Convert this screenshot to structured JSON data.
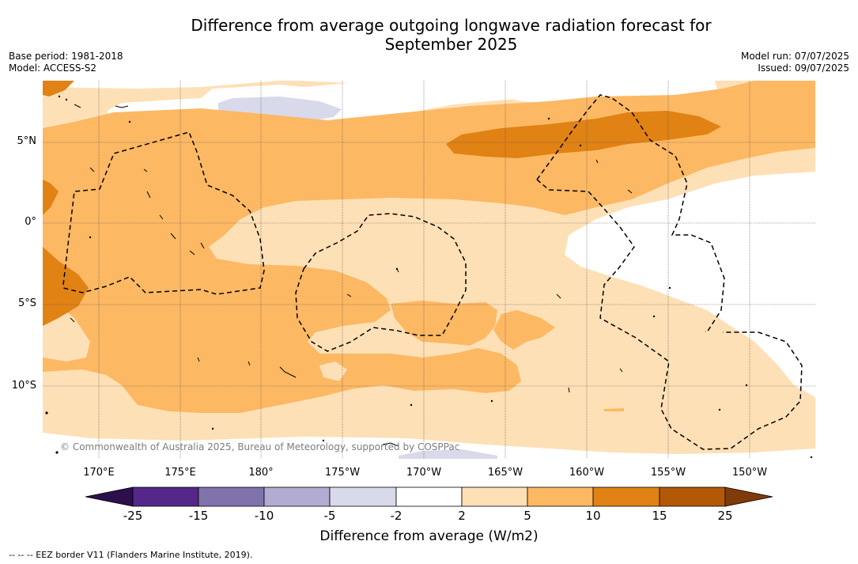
{
  "title": {
    "line1": "Difference from average outgoing longwave radiation forecast for",
    "line2": "September 2025"
  },
  "meta": {
    "base_period": "Base period: 1981-2018",
    "model": "Model: ACCESS-S2",
    "model_run": "Model run: 07/07/2025",
    "issued": "Issued: 09/07/2025"
  },
  "map": {
    "lat_labels": [
      "5°N",
      "0°",
      "5°S",
      "10°S"
    ],
    "lon_labels": [
      "170°E",
      "175°E",
      "180°",
      "175°W",
      "170°W",
      "165°W",
      "160°W",
      "155°W",
      "150°W"
    ],
    "copyright": "© Commonwealth of Australia 2025, Bureau of Meteorology, supported by COSPPac"
  },
  "colorbar": {
    "label": "Difference from average (W/m2)",
    "ticks": [
      "-25",
      "-15",
      "-10",
      "-5",
      "-2",
      "2",
      "5",
      "10",
      "15",
      "25"
    ],
    "colors": {
      "below_-25": "#2d0f4e",
      "-25_-15": "#542788",
      "-15_-10": "#8073ac",
      "-10_-5": "#b2abd2",
      "-5_-2": "#d8daeb",
      "-2_2": "#ffffff",
      "2_5": "#fee0b6",
      "5_10": "#fdb863",
      "10_15": "#e08214",
      "15_25": "#b35806",
      "above_25": "#7f3b08"
    }
  },
  "legend": {
    "eez": "--  --  -- EEZ border V11 (Flanders Marine Institute, 2019)."
  }
}
